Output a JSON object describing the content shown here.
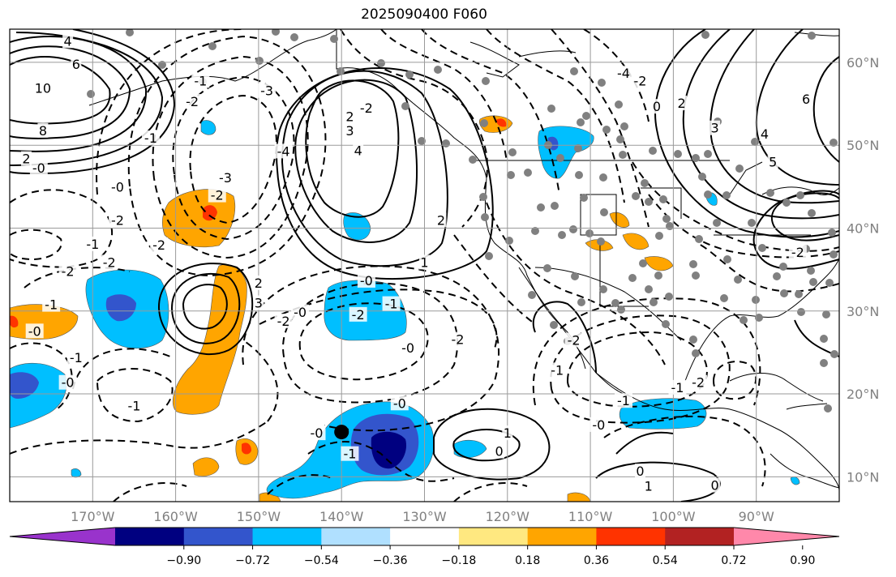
{
  "title": "2025090400 F060",
  "map": {
    "lon_range": [
      -180,
      -80
    ],
    "lat_range": [
      7,
      64
    ],
    "lon_ticks": [
      {
        "lon": -170,
        "label": "170°W"
      },
      {
        "lon": -160,
        "label": "160°W"
      },
      {
        "lon": -150,
        "label": "150°W"
      },
      {
        "lon": -140,
        "label": "140°W"
      },
      {
        "lon": -130,
        "label": "130°W"
      },
      {
        "lon": -120,
        "label": "120°W"
      },
      {
        "lon": -110,
        "label": "110°W"
      },
      {
        "lon": -100,
        "label": "100°W"
      },
      {
        "lon": -90,
        "label": "90°W"
      }
    ],
    "lat_ticks": [
      {
        "lat": 60,
        "label": "60°N"
      },
      {
        "lat": 50,
        "label": "50°N"
      },
      {
        "lat": 40,
        "label": "40°N"
      },
      {
        "lat": 30,
        "label": "30°N"
      },
      {
        "lat": 20,
        "label": "20°N"
      },
      {
        "lat": 10,
        "label": "10°N"
      }
    ],
    "storm_marker": {
      "lon": -140,
      "lat": 15.4
    },
    "contour_labels": [
      {
        "lon": -176,
        "lat": 56.8,
        "text": "10"
      },
      {
        "lon": -172,
        "lat": 59.7,
        "text": "6"
      },
      {
        "lon": -173,
        "lat": 62.5,
        "text": "4"
      },
      {
        "lon": -176,
        "lat": 51.7,
        "text": "8"
      },
      {
        "lon": -178,
        "lat": 48.3,
        "text": "2"
      },
      {
        "lon": -176.5,
        "lat": 47.2,
        "text": "-0"
      },
      {
        "lon": -163,
        "lat": 50.8,
        "text": "-1"
      },
      {
        "lon": -157,
        "lat": 57.7,
        "text": "-1"
      },
      {
        "lon": -149,
        "lat": 56.5,
        "text": "-3"
      },
      {
        "lon": -147,
        "lat": 49.2,
        "text": "-4"
      },
      {
        "lon": -158,
        "lat": 55.2,
        "text": "-2"
      },
      {
        "lon": -154,
        "lat": 46,
        "text": "-3"
      },
      {
        "lon": -155,
        "lat": 43.9,
        "text": "-2"
      },
      {
        "lon": -167,
        "lat": 44.9,
        "text": "-0"
      },
      {
        "lon": -167,
        "lat": 40.9,
        "text": "-2"
      },
      {
        "lon": -170,
        "lat": 38,
        "text": "-1"
      },
      {
        "lon": -162,
        "lat": 37.9,
        "text": "-2"
      },
      {
        "lon": -173,
        "lat": 34.7,
        "text": "-2"
      },
      {
        "lon": -168,
        "lat": 35.8,
        "text": "-2"
      },
      {
        "lon": -175,
        "lat": 30.7,
        "text": "-1"
      },
      {
        "lon": -177,
        "lat": 27.5,
        "text": "-0"
      },
      {
        "lon": -172,
        "lat": 24.3,
        "text": "-1"
      },
      {
        "lon": -173,
        "lat": 21.3,
        "text": "-0"
      },
      {
        "lon": -165,
        "lat": 18.5,
        "text": "-1"
      },
      {
        "lon": -150,
        "lat": 33.3,
        "text": "2"
      },
      {
        "lon": -150,
        "lat": 30.9,
        "text": "3"
      },
      {
        "lon": -145,
        "lat": 29.8,
        "text": "-0"
      },
      {
        "lon": -147,
        "lat": 28.7,
        "text": "-2"
      },
      {
        "lon": -143,
        "lat": 15.2,
        "text": "-0"
      },
      {
        "lon": -139,
        "lat": 12.7,
        "text": "-1"
      },
      {
        "lon": -133,
        "lat": 18.8,
        "text": "-0"
      },
      {
        "lon": -134,
        "lat": 30.8,
        "text": "-1"
      },
      {
        "lon": -126,
        "lat": 26.5,
        "text": "-2"
      },
      {
        "lon": -132,
        "lat": 25.5,
        "text": "-0"
      },
      {
        "lon": -137,
        "lat": 33.6,
        "text": "-0"
      },
      {
        "lon": -138,
        "lat": 29.5,
        "text": "-2"
      },
      {
        "lon": -137,
        "lat": 54.4,
        "text": "-2"
      },
      {
        "lon": -139,
        "lat": 51.7,
        "text": "3"
      },
      {
        "lon": -138,
        "lat": 49.3,
        "text": "4"
      },
      {
        "lon": -139,
        "lat": 53.4,
        "text": "2"
      },
      {
        "lon": -128,
        "lat": 40.9,
        "text": "2"
      },
      {
        "lon": -130,
        "lat": 35.8,
        "text": "1"
      },
      {
        "lon": -120,
        "lat": 15.2,
        "text": "1"
      },
      {
        "lon": -121,
        "lat": 13,
        "text": "0"
      },
      {
        "lon": -114,
        "lat": 22.8,
        "text": "-1"
      },
      {
        "lon": -112,
        "lat": 26.4,
        "text": "-2"
      },
      {
        "lon": -106,
        "lat": 19.1,
        "text": "-1"
      },
      {
        "lon": -109,
        "lat": 16.2,
        "text": "-0"
      },
      {
        "lon": -99.5,
        "lat": 20.7,
        "text": "-1"
      },
      {
        "lon": -97,
        "lat": 21.3,
        "text": "-2"
      },
      {
        "lon": -104,
        "lat": 10.6,
        "text": "0"
      },
      {
        "lon": -103,
        "lat": 8.8,
        "text": "1"
      },
      {
        "lon": -95,
        "lat": 8.9,
        "text": "0"
      },
      {
        "lon": -106,
        "lat": 58.6,
        "text": "-4"
      },
      {
        "lon": -104,
        "lat": 57.7,
        "text": "-2"
      },
      {
        "lon": -102,
        "lat": 54.6,
        "text": "0"
      },
      {
        "lon": -99,
        "lat": 55,
        "text": "2"
      },
      {
        "lon": -95,
        "lat": 52,
        "text": "3"
      },
      {
        "lon": -89,
        "lat": 51.3,
        "text": "4"
      },
      {
        "lon": -88,
        "lat": 47.9,
        "text": "5"
      },
      {
        "lon": -84,
        "lat": 55.5,
        "text": "6"
      },
      {
        "lon": -85,
        "lat": 37,
        "text": "-2"
      }
    ]
  },
  "colorbar": {
    "colors": [
      "#9933cc",
      "#000080",
      "#3355cc",
      "#00bfff",
      "#b0e0ff",
      "#ffffff",
      "#ffe880",
      "#ffa500",
      "#ff3300",
      "#b22222",
      "#ff88aa"
    ],
    "tick_labels": [
      "−0.90",
      "−0.72",
      "−0.54",
      "−0.36",
      "−0.18",
      "0.18",
      "0.36",
      "0.54",
      "0.72",
      "0.90"
    ]
  }
}
